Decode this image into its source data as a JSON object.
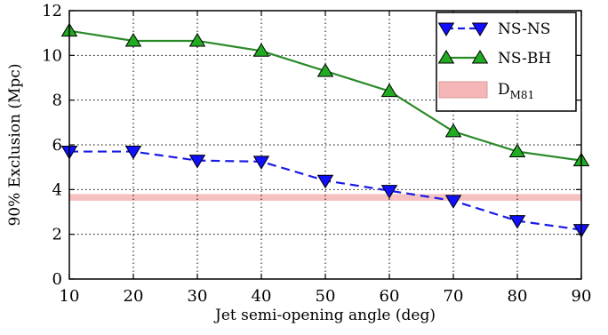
{
  "chart_data": {
    "type": "line",
    "title": "",
    "xlabel": "Jet semi-opening angle (deg)",
    "ylabel": "90% Exclusion (Mpc)",
    "xlim": [
      10,
      90
    ],
    "ylim": [
      0,
      12
    ],
    "xticks": [
      10,
      20,
      30,
      40,
      50,
      60,
      70,
      80,
      90
    ],
    "yticks": [
      0,
      2,
      4,
      6,
      8,
      10,
      12
    ],
    "grid": true,
    "legend_position": "top-right",
    "x": [
      10,
      20,
      30,
      40,
      50,
      60,
      70,
      80,
      90
    ],
    "series": [
      {
        "name": "NS-NS",
        "values": [
          5.7,
          5.7,
          5.3,
          5.25,
          4.4,
          3.95,
          3.5,
          2.6,
          2.2
        ],
        "color": "#1a1ae6",
        "line_style": "dashed",
        "marker": "triangle-down",
        "marker_color": "#1010ff"
      },
      {
        "name": "NS-BH",
        "values": [
          11.1,
          10.65,
          10.65,
          10.2,
          9.3,
          8.4,
          6.6,
          5.7,
          5.3
        ],
        "color": "#2a8a2a",
        "line_style": "solid",
        "marker": "triangle-up",
        "marker_color": "#22aa22"
      }
    ],
    "band": {
      "name_main": "D",
      "name_sub": "M81",
      "y_low": 3.5,
      "y_high": 3.8,
      "color": "#f4b6b6"
    }
  }
}
